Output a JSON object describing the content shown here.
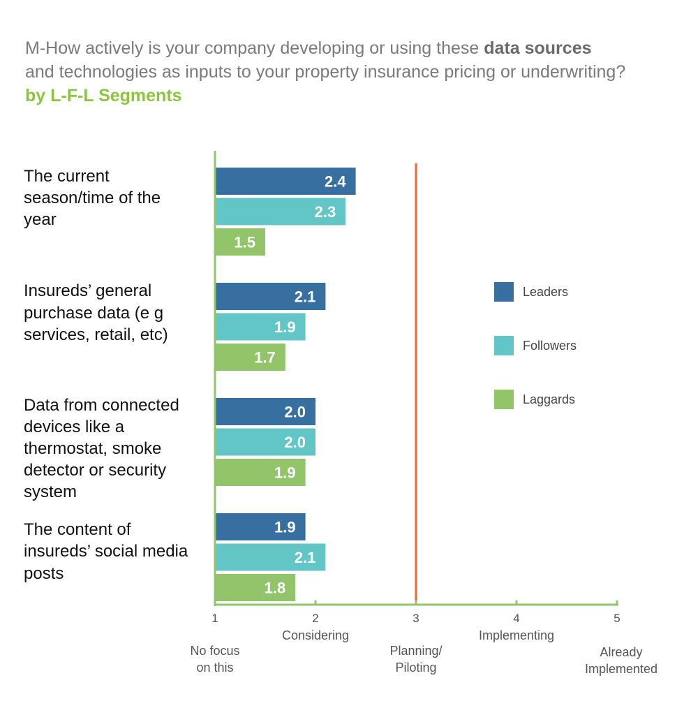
{
  "title": {
    "line1_prefix": "M-How actively is your company developing or using these ",
    "line1_bold": "data sources",
    "line2": "and technologies as inputs to your property insurance pricing or underwriting?",
    "line3": "by L-F-L Segments"
  },
  "colors": {
    "leaders": "#376fa1",
    "followers": "#62c6c6",
    "laggards": "#92c56a",
    "axis": "#92c56a",
    "reference_line": "#f26b2a",
    "category_text": "#111111",
    "tick_text": "#555555"
  },
  "chart_data": {
    "type": "bar",
    "orientation": "horizontal",
    "categories": [
      [
        "The current",
        "season/time of the",
        "year"
      ],
      [
        "Insureds’ general",
        "purchase data (e g",
        "services, retail, etc)"
      ],
      [
        "Data from connected",
        "devices like a",
        "thermostat, smoke",
        "detector or security",
        "system"
      ],
      [
        "The content of",
        "insureds’ social media",
        "posts"
      ]
    ],
    "series": [
      {
        "name": "Leaders",
        "values": [
          2.4,
          2.1,
          2.0,
          1.9
        ]
      },
      {
        "name": "Followers",
        "values": [
          2.3,
          1.9,
          2.0,
          2.1
        ]
      },
      {
        "name": "Laggards",
        "values": [
          1.5,
          1.7,
          1.9,
          1.8
        ]
      }
    ],
    "value_labels": [
      [
        "2.4",
        "2.1",
        "2.0",
        "1.9"
      ],
      [
        "2.3",
        "1.9",
        "2.0",
        "2.1"
      ],
      [
        "1.5",
        "1.7",
        "1.9",
        "1.8"
      ]
    ],
    "xlim": [
      1,
      5
    ],
    "ticks": [
      {
        "value": 1,
        "label": "1",
        "desc": [
          "No focus",
          "on this"
        ]
      },
      {
        "value": 2,
        "label": "2",
        "desc": [
          "Considering"
        ]
      },
      {
        "value": 3,
        "label": "3",
        "desc": [
          "Planning/",
          "Piloting"
        ]
      },
      {
        "value": 4,
        "label": "4",
        "desc": [
          "Implementing"
        ]
      },
      {
        "value": 5,
        "label": "5",
        "desc": [
          "Already",
          "Implemented"
        ]
      }
    ],
    "reference_line": 3,
    "legend_position": "right",
    "grid": false
  }
}
